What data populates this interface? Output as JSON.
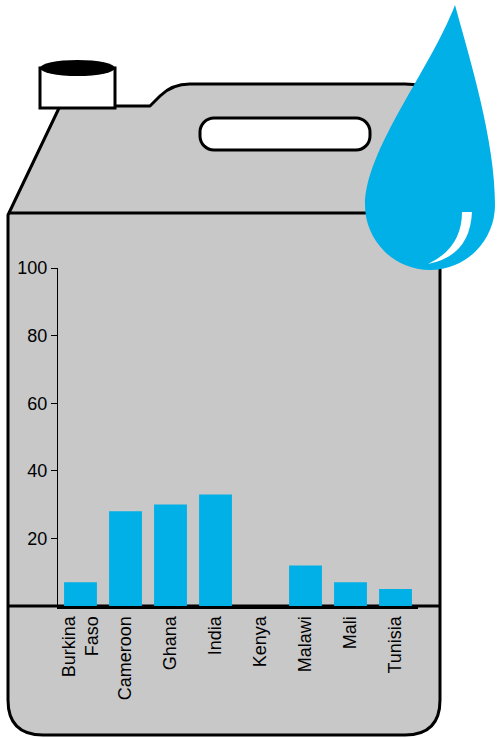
{
  "chart_data": {
    "type": "bar",
    "categories": [
      "Burkina Faso",
      "Cameroon",
      "Ghana",
      "India",
      "Kenya",
      "Malawi",
      "Mali",
      "Tunisia"
    ],
    "values": [
      7,
      28,
      30,
      33,
      0,
      12,
      7,
      5
    ],
    "color": "#00b0e6",
    "ylim": [
      0,
      100
    ],
    "yticks": [
      20,
      40,
      60,
      80,
      100
    ],
    "grid": false
  }
}
